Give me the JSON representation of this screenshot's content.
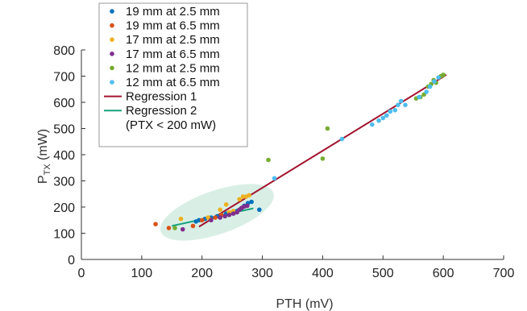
{
  "chart_data": {
    "type": "scatter",
    "xlabel": "PTH (mV)",
    "ylabel_main": "P",
    "ylabel_sub": "TX",
    "ylabel_unit": " (mW)",
    "xlim": [
      0,
      700
    ],
    "ylim": [
      0,
      800
    ],
    "xticks": [
      0,
      100,
      200,
      300,
      400,
      500,
      600,
      700
    ],
    "yticks": [
      0,
      100,
      200,
      300,
      400,
      500,
      600,
      700,
      800
    ],
    "grid": false,
    "legend_placement": "top-left",
    "series": [
      {
        "name": "19 mm at 2.5 mm",
        "color": "#0072BD",
        "points": [
          [
            190,
            145
          ],
          [
            195,
            150
          ],
          [
            205,
            155
          ],
          [
            215,
            160
          ],
          [
            225,
            165
          ],
          [
            232,
            170
          ],
          [
            240,
            175
          ],
          [
            250,
            178
          ],
          [
            258,
            185
          ],
          [
            265,
            195
          ],
          [
            270,
            205
          ],
          [
            276,
            215
          ],
          [
            282,
            220
          ],
          [
            295,
            190
          ]
        ]
      },
      {
        "name": "19 mm at 6.5 mm",
        "color": "#D95319",
        "points": [
          [
            123,
            135
          ],
          [
            145,
            120
          ],
          [
            185,
            128
          ],
          [
            200,
            150
          ],
          [
            214,
            152
          ],
          [
            222,
            160
          ],
          [
            232,
            170
          ]
        ]
      },
      {
        "name": "17 mm at 2.5 mm",
        "color": "#EDB120",
        "points": [
          [
            165,
            155
          ],
          [
            210,
            160
          ],
          [
            230,
            190
          ],
          [
            240,
            210
          ],
          [
            262,
            230
          ],
          [
            268,
            240
          ],
          [
            273,
            240
          ],
          [
            278,
            245
          ],
          [
            245,
            180
          ],
          [
            252,
            185
          ]
        ]
      },
      {
        "name": "17 mm at 6.5 mm",
        "color": "#7E2F8E",
        "points": [
          [
            168,
            115
          ],
          [
            215,
            150
          ],
          [
            230,
            160
          ],
          [
            238,
            165
          ],
          [
            245,
            170
          ],
          [
            252,
            175
          ],
          [
            258,
            180
          ],
          [
            262,
            190
          ],
          [
            266,
            197
          ],
          [
            270,
            202
          ],
          [
            275,
            205
          ]
        ]
      },
      {
        "name": "12 mm at 2.5 mm",
        "color": "#77AC30",
        "points": [
          [
            155,
            120
          ],
          [
            310,
            380
          ],
          [
            400,
            385
          ],
          [
            408,
            500
          ],
          [
            555,
            615
          ],
          [
            562,
            620
          ],
          [
            568,
            630
          ],
          [
            575,
            660
          ],
          [
            580,
            670
          ],
          [
            584,
            685
          ],
          [
            588,
            675
          ],
          [
            596,
            700
          ],
          [
            600,
            705
          ]
        ]
      },
      {
        "name": "12 mm at 6.5 mm",
        "color": "#4DBEEE",
        "points": [
          [
            320,
            310
          ],
          [
            432,
            460
          ],
          [
            482,
            515
          ],
          [
            493,
            530
          ],
          [
            500,
            540
          ],
          [
            506,
            550
          ],
          [
            512,
            565
          ],
          [
            520,
            570
          ],
          [
            525,
            590
          ],
          [
            530,
            605
          ],
          [
            537,
            590
          ],
          [
            560,
            620
          ],
          [
            572,
            640
          ],
          [
            578,
            660
          ],
          [
            585,
            680
          ],
          [
            592,
            695
          ]
        ]
      }
    ],
    "lines": [
      {
        "name": "Regression 1",
        "color": "#A2142F",
        "from": [
          195,
          125
        ],
        "to": [
          605,
          705
        ]
      },
      {
        "name": "Regression 2",
        "color": "#18A37F",
        "from": [
          150,
          128
        ],
        "to": [
          285,
          195
        ]
      }
    ],
    "legend": {
      "items": [
        "19 mm at 2.5 mm",
        "19 mm at 6.5 mm",
        "17 mm at 2.5 mm",
        "17 mm at 6.5 mm",
        "12 mm at 2.5 mm",
        "12 mm at 6.5 mm",
        "Regression 1",
        "Regression 2"
      ],
      "extra_line": "(PTX < 200 mW)"
    },
    "highlight_ellipse": {
      "color": "#d9efe6"
    }
  }
}
